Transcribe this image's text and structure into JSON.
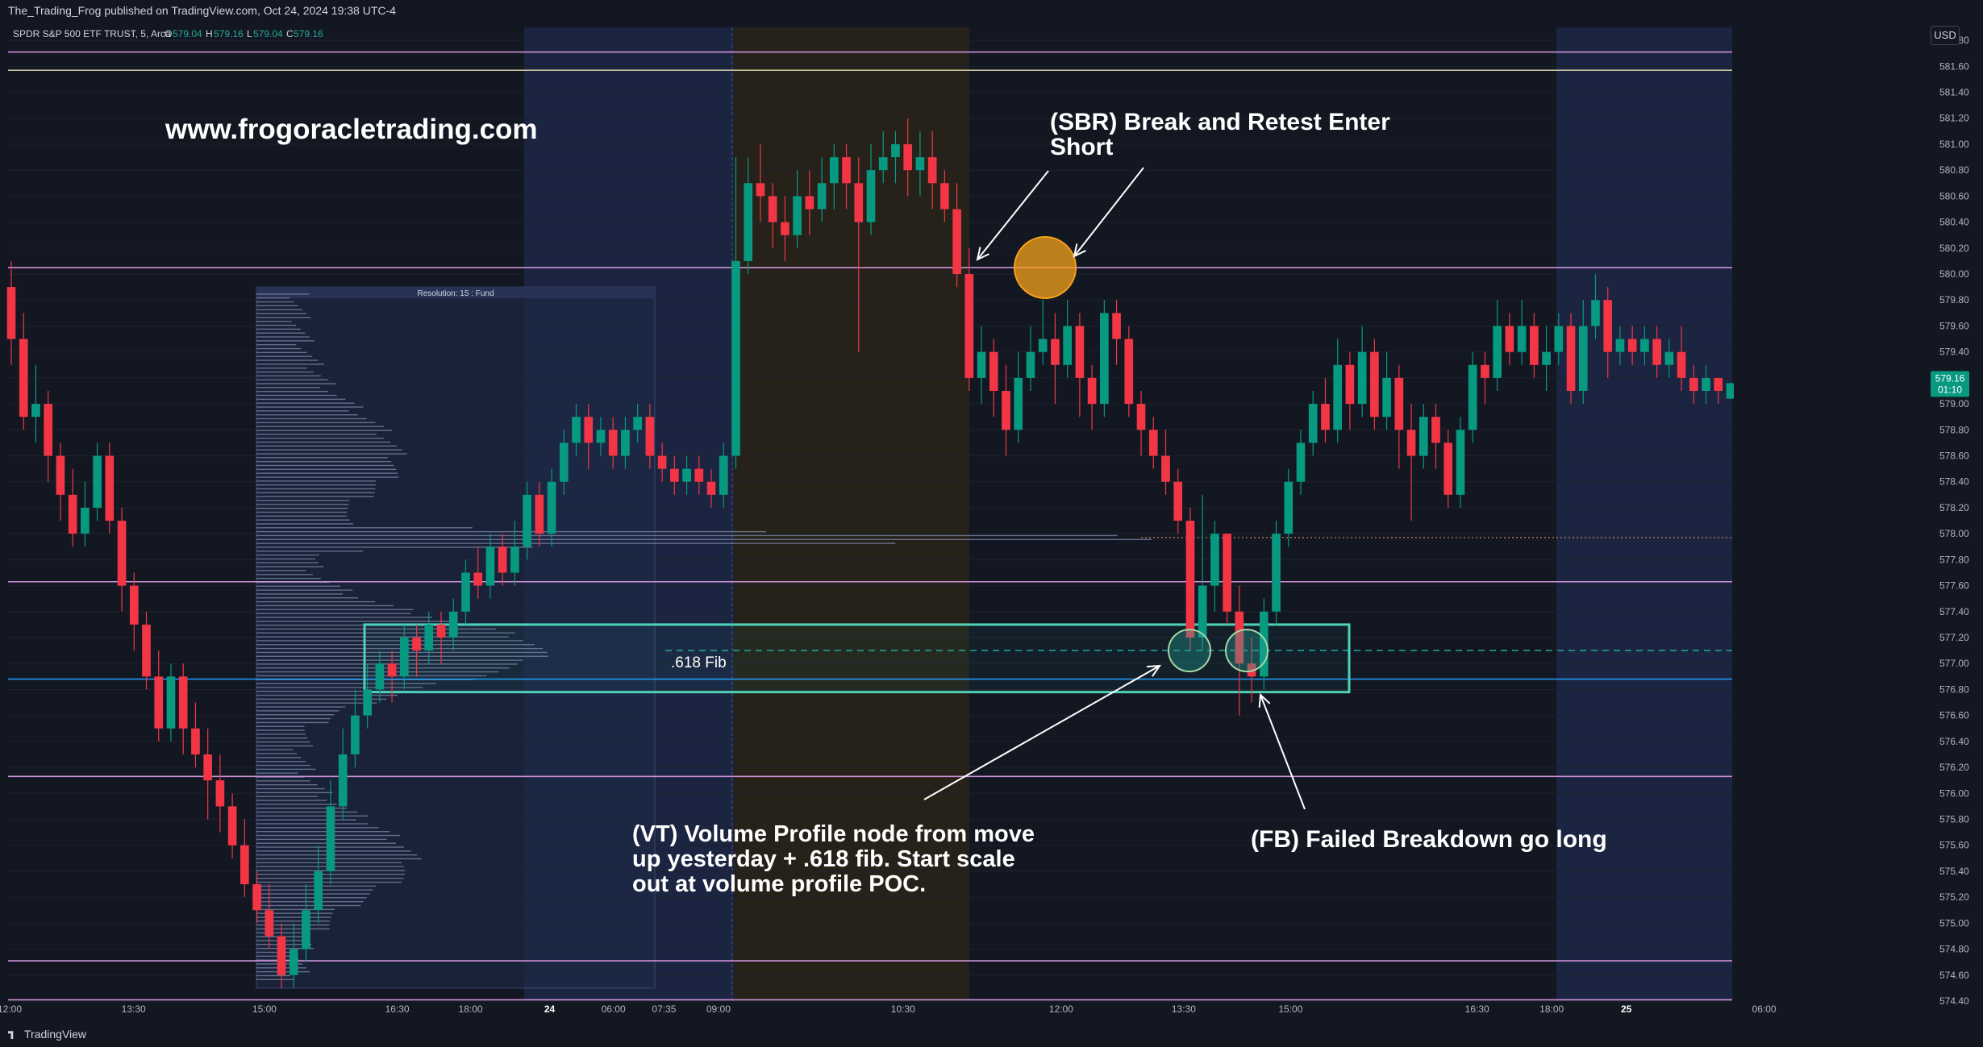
{
  "header": {
    "published_by": "The_Trading_Frog published on TradingView.com, Oct 24, 2024 19:38 UTC-4"
  },
  "footer": {
    "brand": "TradingView"
  },
  "chart_data": {
    "type": "candlestick",
    "symbol_label": "SPDR S&P 500 ETF TRUST, 5, Arca",
    "ohlc_label": {
      "O": "579.04",
      "H": "579.16",
      "L": "579.04",
      "C": "579.16"
    },
    "currency": "USD",
    "ylim": [
      574.4,
      581.9
    ],
    "y_ticks": [
      "581.80",
      "581.60",
      "581.40",
      "581.20",
      "581.00",
      "580.80",
      "580.60",
      "580.40",
      "580.20",
      "580.00",
      "579.80",
      "579.60",
      "579.40",
      "579.20",
      "579.00",
      "578.80",
      "578.60",
      "578.40",
      "578.20",
      "578.00",
      "577.80",
      "577.60",
      "577.40",
      "577.20",
      "577.00",
      "576.80",
      "576.60",
      "576.40",
      "576.20",
      "576.00",
      "575.80",
      "575.60",
      "575.40",
      "575.20",
      "575.00",
      "574.80",
      "574.60",
      "574.40"
    ],
    "x_ticks": [
      "12:00",
      "13:30",
      "15:00",
      "16:30",
      "18:00",
      "24",
      "06:00",
      "07:35",
      "09:00",
      "10:30",
      "12:00",
      "13:30",
      "15:00",
      "16:30",
      "18:00",
      "25",
      "06:00"
    ],
    "x_tick_positions": [
      0.0,
      0.098,
      0.2015,
      0.3065,
      0.3645,
      0.427,
      0.4775,
      0.5175,
      0.5605,
      0.7065,
      0.8315,
      0.9285,
      1.013,
      1.1605,
      1.2195,
      1.2785,
      1.3875
    ],
    "horizontal_levels": [
      {
        "price": 581.71,
        "label": "581.71 (5)",
        "color": "#ce93d8"
      },
      {
        "price": 581.57,
        "label": "581.57 (5)",
        "color": "#c8c6a0"
      },
      {
        "price": 580.05,
        "label": "580.05 (5)",
        "color": "#ce93d8"
      },
      {
        "price": 577.97,
        "label": "POC: 577.97",
        "color": "#f7a452",
        "dotted": true
      },
      {
        "price": 577.63,
        "label": "577.63 (5)",
        "color": "#ce93d8"
      },
      {
        "price": 577.1,
        "label": "577.10",
        "color": "#26a69a",
        "dashed": true
      },
      {
        "price": 576.88,
        "label": "576.88 (30)",
        "color": "#2196f3"
      },
      {
        "price": 576.13,
        "label": "576.13 (5)",
        "color": "#ce93d8"
      },
      {
        "price": 574.71,
        "label": "574.71 (90)",
        "color": "#ce93d8"
      },
      {
        "price": 574.41,
        "label": "574.41 (5)",
        "color": "#ce93d8"
      }
    ],
    "last_price": {
      "price": "579.16",
      "countdown": "01:10"
    },
    "volume_profile": {
      "label": "Resolution: 15 : Fund"
    },
    "fib_label": ".618 Fib",
    "candles": [
      [
        579.9,
        579.5,
        580.1,
        579.3
      ],
      [
        579.5,
        578.9,
        579.7,
        578.8
      ],
      [
        578.9,
        579.0,
        579.3,
        578.7
      ],
      [
        579.0,
        578.6,
        579.1,
        578.4
      ],
      [
        578.6,
        578.3,
        578.7,
        578.1
      ],
      [
        578.3,
        578.0,
        578.5,
        577.9
      ],
      [
        578.0,
        578.2,
        578.4,
        577.9
      ],
      [
        578.2,
        578.6,
        578.7,
        578.1
      ],
      [
        578.6,
        578.1,
        578.7,
        578.0
      ],
      [
        578.1,
        577.6,
        578.2,
        577.4
      ],
      [
        577.6,
        577.3,
        577.7,
        577.1
      ],
      [
        577.3,
        576.9,
        577.4,
        576.8
      ],
      [
        576.9,
        576.5,
        577.1,
        576.4
      ],
      [
        576.5,
        576.9,
        577.0,
        576.4
      ],
      [
        576.9,
        576.5,
        577.0,
        576.3
      ],
      [
        576.5,
        576.3,
        576.7,
        576.2
      ],
      [
        576.3,
        576.1,
        576.5,
        575.8
      ],
      [
        576.1,
        575.9,
        576.3,
        575.7
      ],
      [
        575.9,
        575.6,
        576.0,
        575.5
      ],
      [
        575.6,
        575.3,
        575.8,
        575.2
      ],
      [
        575.3,
        575.1,
        575.4,
        575.0
      ],
      [
        575.1,
        574.9,
        575.3,
        574.8
      ],
      [
        574.9,
        574.6,
        575.0,
        574.5
      ],
      [
        574.6,
        574.8,
        575.0,
        574.5
      ],
      [
        574.8,
        575.1,
        575.3,
        574.7
      ],
      [
        575.1,
        575.4,
        575.6,
        575.0
      ],
      [
        575.4,
        575.9,
        576.1,
        575.3
      ],
      [
        575.9,
        576.3,
        576.5,
        575.8
      ],
      [
        576.3,
        576.6,
        576.8,
        576.2
      ],
      [
        576.6,
        576.8,
        577.0,
        576.5
      ],
      [
        576.8,
        577.0,
        577.1,
        576.7
      ],
      [
        577.0,
        576.9,
        577.1,
        576.7
      ],
      [
        576.9,
        577.2,
        577.3,
        576.8
      ],
      [
        577.2,
        577.1,
        577.3,
        576.9
      ],
      [
        577.1,
        577.3,
        577.4,
        577.0
      ],
      [
        577.3,
        577.2,
        577.4,
        577.0
      ],
      [
        577.2,
        577.4,
        577.5,
        577.1
      ],
      [
        577.4,
        577.7,
        577.8,
        577.3
      ],
      [
        577.7,
        577.6,
        577.9,
        577.5
      ],
      [
        577.6,
        577.9,
        578.0,
        577.5
      ],
      [
        577.9,
        577.7,
        578.0,
        577.6
      ],
      [
        577.7,
        577.9,
        578.1,
        577.6
      ],
      [
        577.9,
        578.3,
        578.4,
        577.8
      ],
      [
        578.3,
        578.0,
        578.4,
        577.9
      ],
      [
        578.0,
        578.4,
        578.5,
        577.9
      ],
      [
        578.4,
        578.7,
        578.8,
        578.3
      ],
      [
        578.7,
        578.9,
        579.0,
        578.6
      ],
      [
        578.9,
        578.7,
        579.0,
        578.5
      ],
      [
        578.7,
        578.8,
        578.9,
        578.6
      ],
      [
        578.8,
        578.6,
        578.9,
        578.5
      ],
      [
        578.6,
        578.8,
        578.9,
        578.5
      ],
      [
        578.8,
        578.9,
        579.0,
        578.7
      ],
      [
        578.9,
        578.6,
        579.0,
        578.5
      ],
      [
        578.6,
        578.5,
        578.7,
        578.4
      ],
      [
        578.5,
        578.4,
        578.6,
        578.3
      ],
      [
        578.4,
        578.5,
        578.6,
        578.3
      ],
      [
        578.5,
        578.4,
        578.6,
        578.3
      ],
      [
        578.4,
        578.3,
        578.5,
        578.2
      ],
      [
        578.3,
        578.6,
        578.7,
        578.2
      ],
      [
        578.6,
        580.1,
        580.9,
        578.5
      ],
      [
        580.1,
        580.7,
        580.9,
        580.0
      ],
      [
        580.7,
        580.6,
        581.0,
        580.4
      ],
      [
        580.6,
        580.4,
        580.7,
        580.2
      ],
      [
        580.4,
        580.3,
        580.6,
        580.1
      ],
      [
        580.3,
        580.6,
        580.8,
        580.2
      ],
      [
        580.6,
        580.5,
        580.8,
        580.3
      ],
      [
        580.5,
        580.7,
        580.9,
        580.4
      ],
      [
        580.7,
        580.9,
        581.0,
        580.5
      ],
      [
        580.9,
        580.7,
        581.0,
        580.5
      ],
      [
        580.7,
        580.4,
        580.9,
        579.4
      ],
      [
        580.4,
        580.8,
        581.0,
        580.3
      ],
      [
        580.8,
        580.9,
        581.1,
        580.7
      ],
      [
        580.9,
        581.0,
        581.1,
        580.7
      ],
      [
        581.0,
        580.8,
        581.2,
        580.6
      ],
      [
        580.8,
        580.9,
        581.1,
        580.6
      ],
      [
        580.9,
        580.7,
        581.1,
        580.5
      ],
      [
        580.7,
        580.5,
        580.8,
        580.4
      ],
      [
        580.5,
        580.0,
        580.7,
        579.9
      ],
      [
        580.0,
        579.2,
        580.2,
        579.1
      ],
      [
        579.2,
        579.4,
        579.6,
        579.0
      ],
      [
        579.4,
        579.1,
        579.5,
        578.9
      ],
      [
        579.1,
        578.8,
        579.3,
        578.6
      ],
      [
        578.8,
        579.2,
        579.4,
        578.7
      ],
      [
        579.2,
        579.4,
        579.6,
        579.1
      ],
      [
        579.4,
        579.5,
        579.8,
        579.3
      ],
      [
        579.5,
        579.3,
        579.7,
        579.0
      ],
      [
        579.3,
        579.6,
        579.8,
        579.2
      ],
      [
        579.6,
        579.2,
        579.7,
        578.9
      ],
      [
        579.2,
        579.0,
        579.3,
        578.8
      ],
      [
        579.0,
        579.7,
        579.8,
        578.9
      ],
      [
        579.7,
        579.5,
        579.8,
        579.3
      ],
      [
        579.5,
        579.0,
        579.6,
        578.9
      ],
      [
        579.0,
        578.8,
        579.1,
        578.6
      ],
      [
        578.8,
        578.6,
        578.9,
        578.5
      ],
      [
        578.6,
        578.4,
        578.8,
        578.3
      ],
      [
        578.4,
        578.1,
        578.5,
        578.0
      ],
      [
        578.1,
        577.2,
        578.2,
        577.1
      ],
      [
        577.2,
        577.6,
        578.3,
        577.1
      ],
      [
        577.6,
        578.0,
        578.1,
        577.4
      ],
      [
        578.0,
        577.4,
        578.0,
        577.3
      ],
      [
        577.4,
        577.0,
        577.6,
        576.6
      ],
      [
        577.0,
        576.9,
        577.2,
        576.7
      ],
      [
        576.9,
        577.4,
        577.5,
        576.8
      ],
      [
        577.4,
        578.0,
        578.1,
        577.3
      ],
      [
        578.0,
        578.4,
        578.5,
        577.9
      ],
      [
        578.4,
        578.7,
        578.8,
        578.3
      ],
      [
        578.7,
        579.0,
        579.1,
        578.6
      ],
      [
        579.0,
        578.8,
        579.2,
        578.7
      ],
      [
        578.8,
        579.3,
        579.5,
        578.7
      ],
      [
        579.3,
        579.0,
        579.4,
        578.8
      ],
      [
        579.0,
        579.4,
        579.6,
        578.9
      ],
      [
        579.4,
        578.9,
        579.5,
        578.8
      ],
      [
        578.9,
        579.2,
        579.4,
        578.8
      ],
      [
        579.2,
        578.8,
        579.3,
        578.5
      ],
      [
        578.8,
        578.6,
        579.0,
        578.1
      ],
      [
        578.6,
        578.9,
        579.0,
        578.5
      ],
      [
        578.9,
        578.7,
        579.0,
        578.5
      ],
      [
        578.7,
        578.3,
        578.8,
        578.2
      ],
      [
        578.3,
        578.8,
        578.9,
        578.2
      ],
      [
        578.8,
        579.3,
        579.4,
        578.7
      ],
      [
        579.3,
        579.2,
        579.4,
        579.0
      ],
      [
        579.2,
        579.6,
        579.8,
        579.1
      ],
      [
        579.6,
        579.4,
        579.7,
        579.3
      ],
      [
        579.4,
        579.6,
        579.8,
        579.3
      ],
      [
        579.6,
        579.3,
        579.7,
        579.2
      ],
      [
        579.3,
        579.4,
        579.6,
        579.1
      ],
      [
        579.4,
        579.6,
        579.7,
        579.3
      ],
      [
        579.6,
        579.1,
        579.7,
        579.0
      ],
      [
        579.1,
        579.6,
        579.8,
        579.0
      ],
      [
        579.6,
        579.8,
        580.0,
        579.5
      ],
      [
        579.8,
        579.4,
        579.9,
        579.2
      ],
      [
        579.4,
        579.5,
        579.6,
        579.3
      ],
      [
        579.5,
        579.4,
        579.6,
        579.3
      ],
      [
        579.4,
        579.5,
        579.6,
        579.3
      ],
      [
        579.5,
        579.3,
        579.6,
        579.2
      ],
      [
        579.3,
        579.4,
        579.5,
        579.2
      ],
      [
        579.4,
        579.2,
        579.6,
        579.1
      ],
      [
        579.2,
        579.1,
        579.3,
        579.0
      ],
      [
        579.1,
        579.2,
        579.3,
        579.0
      ],
      [
        579.2,
        579.1,
        579.2,
        579.0
      ],
      [
        579.04,
        579.16,
        579.16,
        579.04
      ]
    ],
    "annotations": [
      {
        "text": "www.frogoracletrading.com"
      },
      {
        "text": "(SBR) Break and Retest Enter Short"
      },
      {
        "text": "(VT) Volume Profile node from move up yesterday + .618 fib. Start scale out at volume profile POC."
      },
      {
        "text": "(FB) Failed Breakdown go long"
      }
    ]
  }
}
